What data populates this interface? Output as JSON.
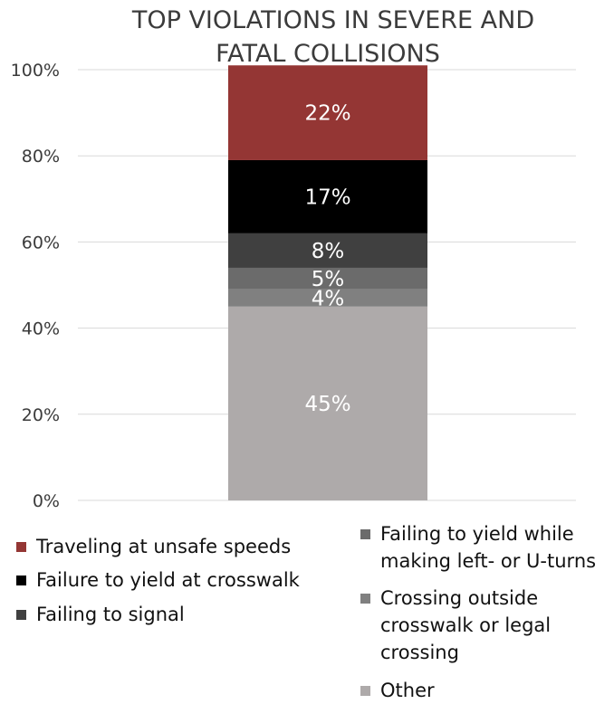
{
  "chart_data": {
    "type": "bar",
    "stacked": true,
    "title_lines": [
      "TOP VIOLATIONS IN SEVERE AND",
      "FATAL COLLISIONS"
    ],
    "categories": [
      ""
    ],
    "ylim": [
      0,
      100
    ],
    "yticks": [
      "0%",
      "20%",
      "40%",
      "60%",
      "80%",
      "100%"
    ],
    "ytick_values": [
      0,
      20,
      40,
      60,
      80,
      100
    ],
    "grid": true,
    "legend_position": "bottom",
    "series": [
      {
        "name": "Other",
        "value": 45,
        "label": "45%",
        "color": "#aeaaaa"
      },
      {
        "name": "Crossing outside crosswalk or legal crossing",
        "value": 4,
        "label": "4%",
        "color": "#808080"
      },
      {
        "name": "Failing to yield while making left- or U-turns",
        "value": 5,
        "label": "5%",
        "color": "#6b6b6b"
      },
      {
        "name": "Failing to signal",
        "value": 8,
        "label": "8%",
        "color": "#404040"
      },
      {
        "name": "Failure to yield at crosswalk",
        "value": 17,
        "label": "17%",
        "color": "#000000"
      },
      {
        "name": "Traveling at unsafe speeds",
        "value": 22,
        "label": "22%",
        "color": "#943634"
      }
    ]
  }
}
